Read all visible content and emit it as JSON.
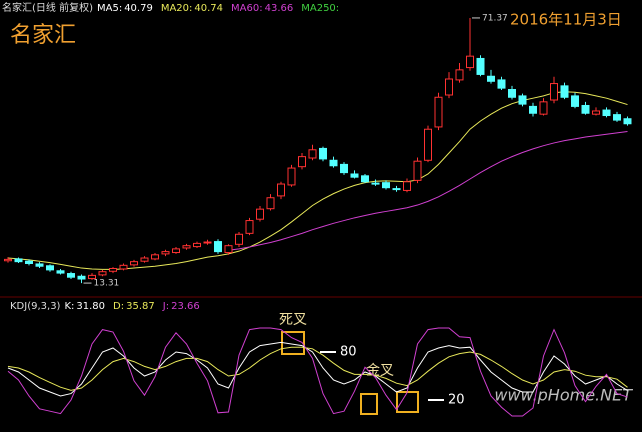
{
  "overlay_title": "名家汇",
  "date": "2016年11月3日",
  "watermark": "www.pHome.NET",
  "chart_data": [
    {
      "type": "candlestick",
      "title": "名家汇(日线 前复权)",
      "legend": [
        {
          "label": "MA5:",
          "value": 40.79,
          "color": "#ffffff"
        },
        {
          "label": "MA20:",
          "value": 40.74,
          "color": "#e8e85a"
        },
        {
          "label": "MA60:",
          "value": 43.66,
          "color": "#d040d0"
        },
        {
          "label": "MA250:",
          "color": "#40d040"
        }
      ],
      "open": [
        18.2,
        18.6,
        18.1,
        17.5,
        17.1,
        16.0,
        15.4,
        14.8,
        14.3,
        15.1,
        15.9,
        16.4,
        17.3,
        18.1,
        18.6,
        19.7,
        20.0,
        21.0,
        21.3,
        22.1,
        22.4,
        20.0,
        21.8,
        24.2,
        27.3,
        29.6,
        32.4,
        34.8,
        38.8,
        40.7,
        42.8,
        40.2,
        39.3,
        37.2,
        36.8,
        35.2,
        35.3,
        34.0,
        33.6,
        35.8,
        40.2,
        47.5,
        54.5,
        57.8,
        60.5,
        62.5,
        58.6,
        57.8,
        55.7,
        54.3,
        52.0,
        50.3,
        53.4,
        56.5,
        54.3,
        52.2,
        50.3,
        51.2,
        50.2,
        49.3
      ],
      "high": [
        19.0,
        18.9,
        18.5,
        17.9,
        17.4,
        16.4,
        15.8,
        15.2,
        15.5,
        16.2,
        16.8,
        17.6,
        18.4,
        19.2,
        19.9,
        20.6,
        21.2,
        21.9,
        22.4,
        22.8,
        22.9,
        21.8,
        24.5,
        27.6,
        30.2,
        32.8,
        35.5,
        39.2,
        41.8,
        43.6,
        43.2,
        41.0,
        39.8,
        38.0,
        37.2,
        36.0,
        35.8,
        34.6,
        36.2,
        40.8,
        47.8,
        55.0,
        59.5,
        61.5,
        71.37,
        63.2,
        60.0,
        58.5,
        56.5,
        54.8,
        52.8,
        53.8,
        58.5,
        57.2,
        55.0,
        53.0,
        51.8,
        51.8,
        50.8,
        49.8
      ],
      "low": [
        17.8,
        17.7,
        17.2,
        16.6,
        15.8,
        15.2,
        14.2,
        13.31,
        14.0,
        14.8,
        15.5,
        16.1,
        16.9,
        17.8,
        18.3,
        19.2,
        19.7,
        20.6,
        21.0,
        21.7,
        19.7,
        19.5,
        21.2,
        23.8,
        26.8,
        29.2,
        31.7,
        34.4,
        38.2,
        40.2,
        40.0,
        38.6,
        37.0,
        36.2,
        35.2,
        34.6,
        33.8,
        33.3,
        33.2,
        35.2,
        39.8,
        46.8,
        53.8,
        57.2,
        59.8,
        58.6,
        57.0,
        55.6,
        53.5,
        52.0,
        49.8,
        50.0,
        52.7,
        53.6,
        51.6,
        50.2,
        50.0,
        49.6,
        48.6,
        47.8
      ],
      "close": [
        18.5,
        18.0,
        17.6,
        17.0,
        16.2,
        15.5,
        14.6,
        14.2,
        15.0,
        15.8,
        16.5,
        17.2,
        18.0,
        18.8,
        19.5,
        20.2,
        20.8,
        21.5,
        22.0,
        22.3,
        20.2,
        21.5,
        24.0,
        27.0,
        29.5,
        32.0,
        35.0,
        38.5,
        41.0,
        42.5,
        40.5,
        39.0,
        37.5,
        36.5,
        35.5,
        35.0,
        34.2,
        33.8,
        35.5,
        40.0,
        47.0,
        54.0,
        58.0,
        60.0,
        63.0,
        59.0,
        57.5,
        56.0,
        54.0,
        52.5,
        50.5,
        53.0,
        57.0,
        54.0,
        52.0,
        50.5,
        51.0,
        50.0,
        49.0,
        48.2
      ],
      "up_color": "#ff3232",
      "down_color": "#54ffff",
      "series": [
        {
          "color": "#e8e85a",
          "values": [
            18.8,
            18.6,
            18.4,
            18.1,
            17.8,
            17.4,
            17.0,
            16.6,
            16.4,
            16.3,
            16.3,
            16.4,
            16.6,
            16.8,
            17.0,
            17.3,
            17.6,
            18.0,
            18.5,
            19.0,
            19.3,
            19.7,
            20.3,
            21.2,
            22.3,
            23.6,
            25.0,
            26.7,
            28.5,
            30.3,
            31.7,
            32.9,
            33.9,
            34.7,
            35.3,
            35.6,
            35.7,
            35.6,
            35.5,
            35.9,
            37.2,
            39.3,
            41.8,
            44.3,
            47.0,
            48.8,
            50.3,
            51.6,
            52.6,
            53.3,
            53.8,
            54.3,
            55.0,
            55.2,
            55.1,
            54.8,
            54.3,
            53.8,
            53.1,
            52.4
          ]
        },
        {
          "color": "#d040d0",
          "values": [
            null,
            null,
            null,
            null,
            null,
            null,
            null,
            null,
            null,
            null,
            null,
            null,
            null,
            null,
            null,
            null,
            null,
            null,
            null,
            null,
            null,
            20.5,
            20.8,
            21.2,
            21.7,
            22.2,
            22.8,
            23.5,
            24.2,
            25.0,
            25.7,
            26.4,
            27.0,
            27.6,
            28.1,
            28.6,
            29.0,
            29.4,
            29.8,
            30.4,
            31.2,
            32.2,
            33.4,
            34.7,
            36.1,
            37.5,
            38.8,
            40.0,
            41.0,
            41.9,
            42.7,
            43.4,
            44.0,
            44.5,
            44.9,
            45.3,
            45.6,
            45.9,
            46.2,
            46.5
          ]
        }
      ],
      "ylim": [
        10.7,
        75.3
      ]
    },
    {
      "type": "line",
      "title": "KDJ(9,3,3)",
      "legend": [
        {
          "label": "K:",
          "value": 31.8,
          "value_label": "31.80",
          "color": "#ffffff"
        },
        {
          "label": "D:",
          "value": 35.87,
          "color": "#e8e85a"
        },
        {
          "label": "J:",
          "value": 23.66,
          "color": "#d040d0"
        }
      ],
      "series": [
        {
          "color": "#ffffff",
          "values": [
            60,
            55,
            45,
            35,
            30,
            25,
            28,
            40,
            60,
            80,
            85,
            75,
            60,
            50,
            55,
            70,
            80,
            78,
            70,
            60,
            40,
            35,
            60,
            80,
            88,
            90,
            92,
            90,
            88,
            80,
            60,
            45,
            40,
            45,
            55,
            50,
            40,
            30,
            35,
            60,
            80,
            85,
            88,
            85,
            86,
            70,
            55,
            45,
            35,
            30,
            30,
            55,
            75,
            65,
            50,
            40,
            45,
            50,
            40,
            31.8
          ]
        },
        {
          "color": "#e8e85a",
          "values": [
            62,
            60,
            55,
            48,
            42,
            36,
            32,
            35,
            45,
            58,
            68,
            72,
            68,
            62,
            58,
            62,
            68,
            72,
            72,
            68,
            58,
            50,
            52,
            60,
            70,
            78,
            84,
            86,
            86,
            84,
            76,
            66,
            57,
            52,
            52,
            51,
            47,
            41,
            38,
            45,
            56,
            66,
            74,
            78,
            80,
            77,
            70,
            62,
            53,
            45,
            40,
            45,
            55,
            58,
            56,
            51,
            49,
            49,
            46,
            35.87
          ]
        },
        {
          "color": "#d040d0",
          "values": [
            56,
            45,
            25,
            9,
            6,
            3,
            20,
            50,
            90,
            108,
            105,
            81,
            44,
            26,
            49,
            86,
            104,
            90,
            66,
            44,
            4,
            5,
            76,
            108,
            110,
            110,
            108,
            98,
            92,
            72,
            28,
            3,
            6,
            31,
            61,
            48,
            26,
            8,
            29,
            90,
            108,
            110,
            110,
            99,
            98,
            56,
            25,
            11,
            0,
            0,
            10,
            75,
            108,
            79,
            38,
            18,
            37,
            52,
            28,
            23.66
          ]
        }
      ],
      "ylim": [
        -20,
        145
      ],
      "annotations": [
        {
          "text": "死叉"
        },
        {
          "text": "金叉"
        }
      ],
      "reference_levels": [
        80,
        20
      ]
    }
  ]
}
